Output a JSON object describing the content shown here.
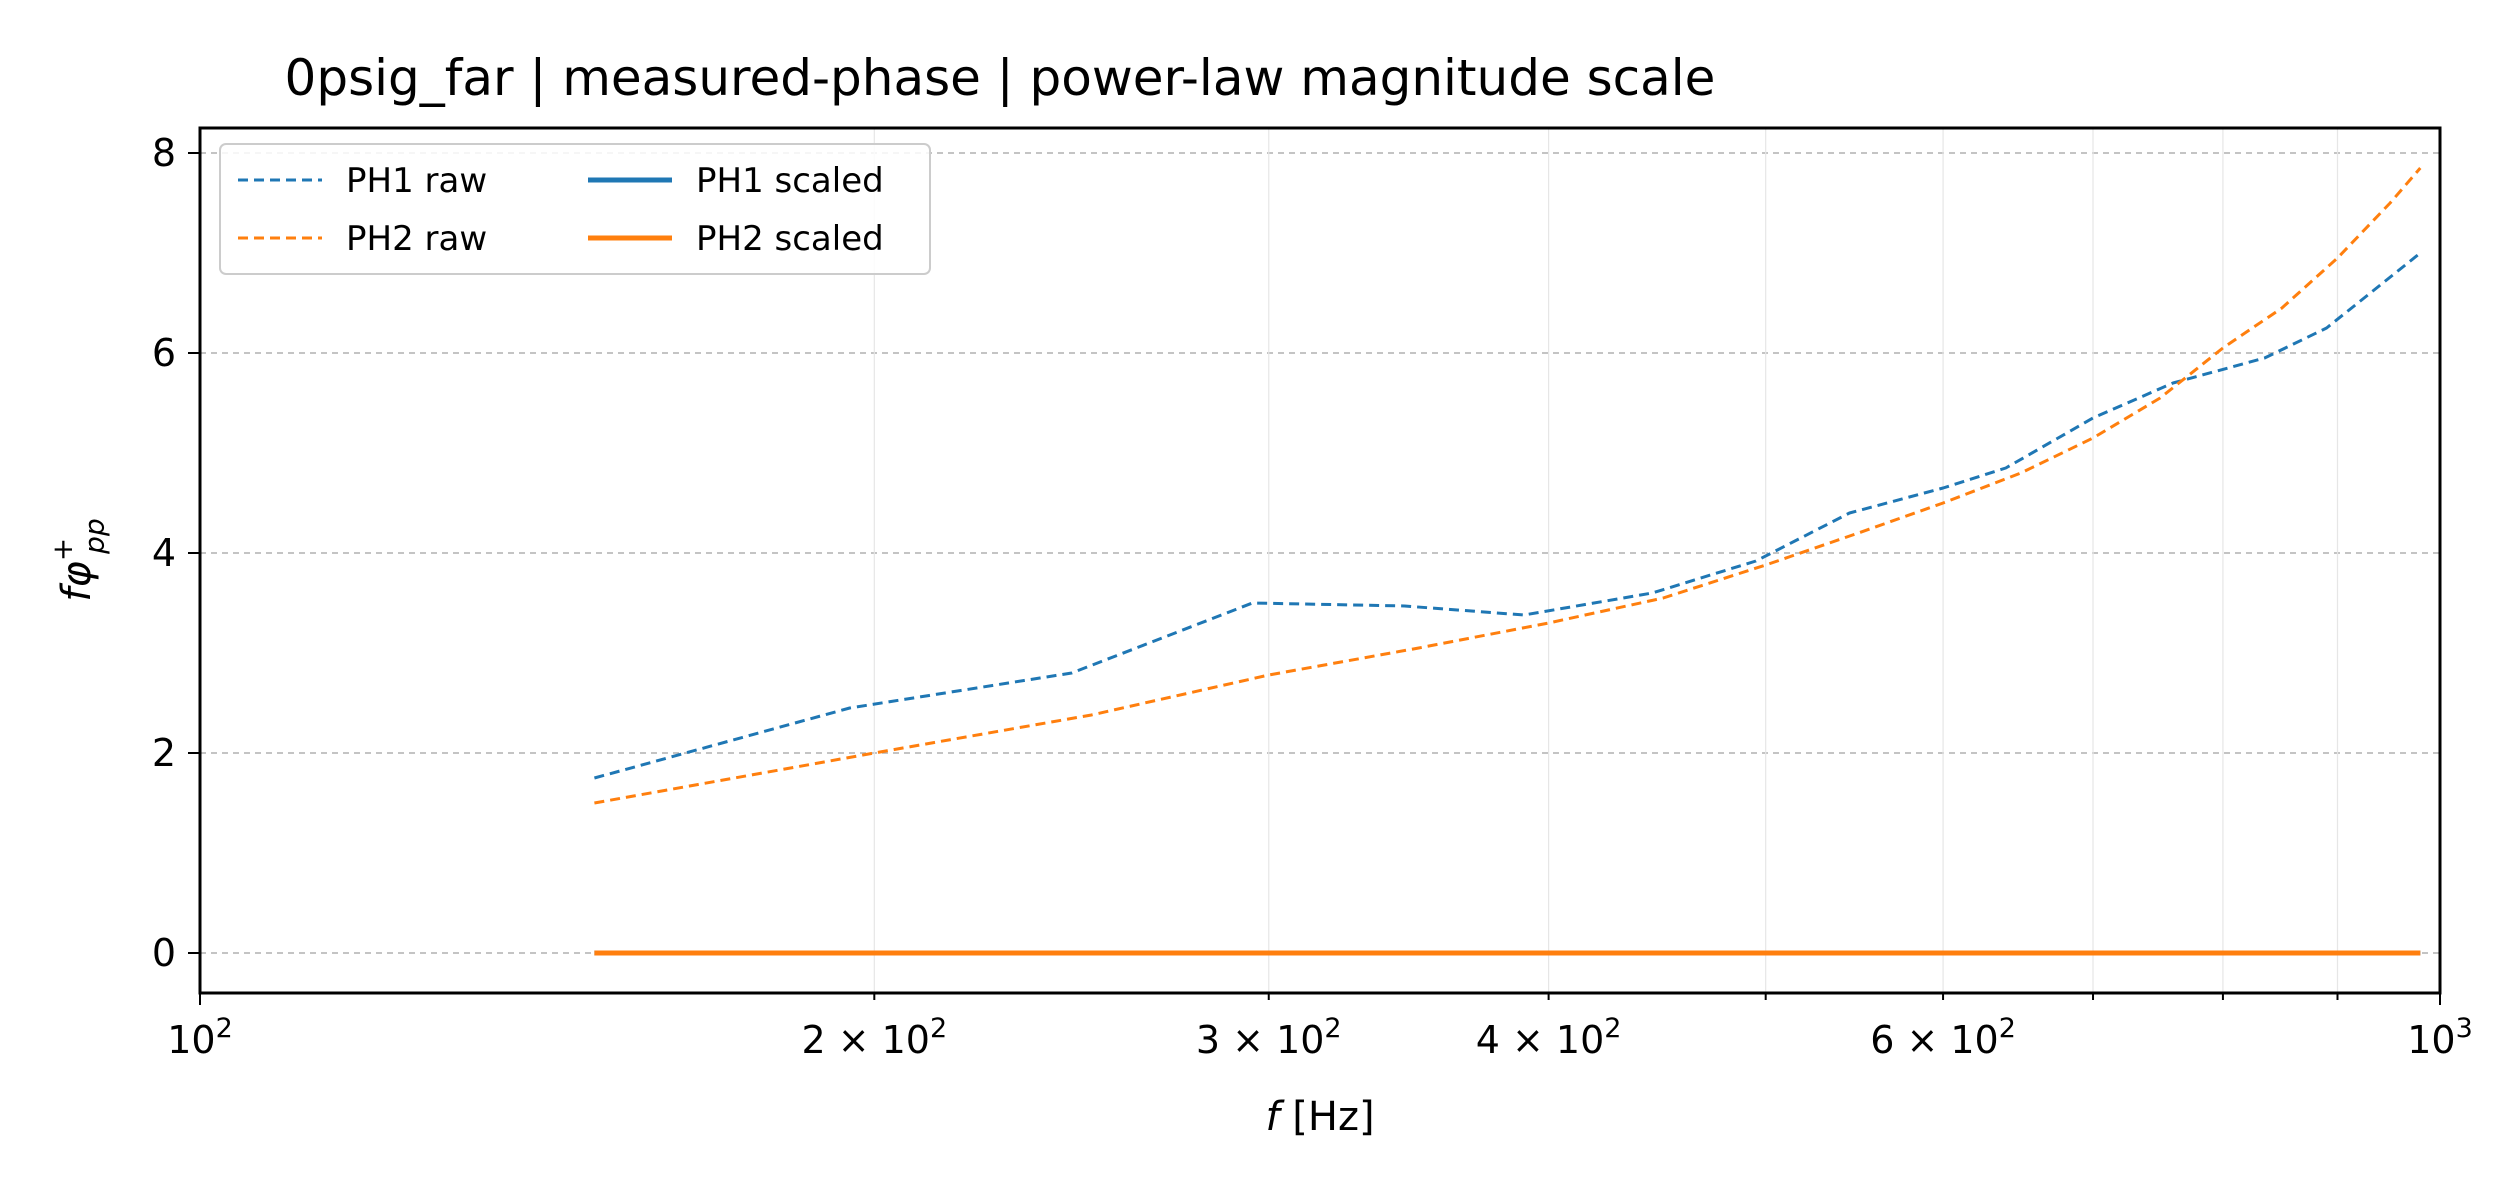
{
  "chart_data": {
    "type": "line",
    "title": "0psig_far | measured-phase | power-law magnitude scale",
    "xlabel": "f [Hz]",
    "ylabel": "fφ⁺pp",
    "xscale": "log",
    "xlim": [
      100,
      1000
    ],
    "ylim": [
      -0.4,
      8.25
    ],
    "xticks": [
      {
        "value": 100,
        "base": "10",
        "exp": "2"
      },
      {
        "value": 200,
        "base": "2 × 10",
        "exp": "2"
      },
      {
        "value": 300,
        "base": "3 × 10",
        "exp": "2"
      },
      {
        "value": 400,
        "base": "4 × 10",
        "exp": "2"
      },
      {
        "value": 600,
        "base": "6 × 10",
        "exp": "2"
      },
      {
        "value": 1000,
        "base": "10",
        "exp": "3"
      }
    ],
    "yticks": [
      0,
      2,
      4,
      6,
      8
    ],
    "grid": true,
    "legend": {
      "position": "top-left",
      "columns": 2
    },
    "series": [
      {
        "name": "PH1 raw",
        "color": "#1f77b4",
        "style": "dashed",
        "x": [
          150,
          195,
          245,
          295,
          345,
          390,
          445,
          495,
          545,
          600,
          640,
          700,
          760,
          835,
          890,
          980
        ],
        "y": [
          1.75,
          2.45,
          2.8,
          3.5,
          3.47,
          3.38,
          3.6,
          3.92,
          4.4,
          4.65,
          4.85,
          5.35,
          5.7,
          5.95,
          6.25,
          7.0
        ]
      },
      {
        "name": "PH2 raw",
        "color": "#ff7f0e",
        "style": "dashed",
        "x": [
          150,
          200,
          250,
          300,
          350,
          400,
          450,
          500,
          550,
          600,
          650,
          700,
          750,
          800,
          850,
          900,
          950,
          980
        ],
        "y": [
          1.5,
          2.0,
          2.38,
          2.78,
          3.05,
          3.3,
          3.55,
          3.88,
          4.2,
          4.5,
          4.8,
          5.15,
          5.55,
          6.05,
          6.45,
          6.95,
          7.5,
          7.85
        ]
      },
      {
        "name": "PH1 scaled",
        "color": "#1f77b4",
        "style": "solid",
        "x": [
          150,
          980
        ],
        "y": [
          0,
          0
        ]
      },
      {
        "name": "PH2 scaled",
        "color": "#ff7f0e",
        "style": "solid",
        "x": [
          150,
          980
        ],
        "y": [
          0,
          0
        ]
      }
    ]
  }
}
